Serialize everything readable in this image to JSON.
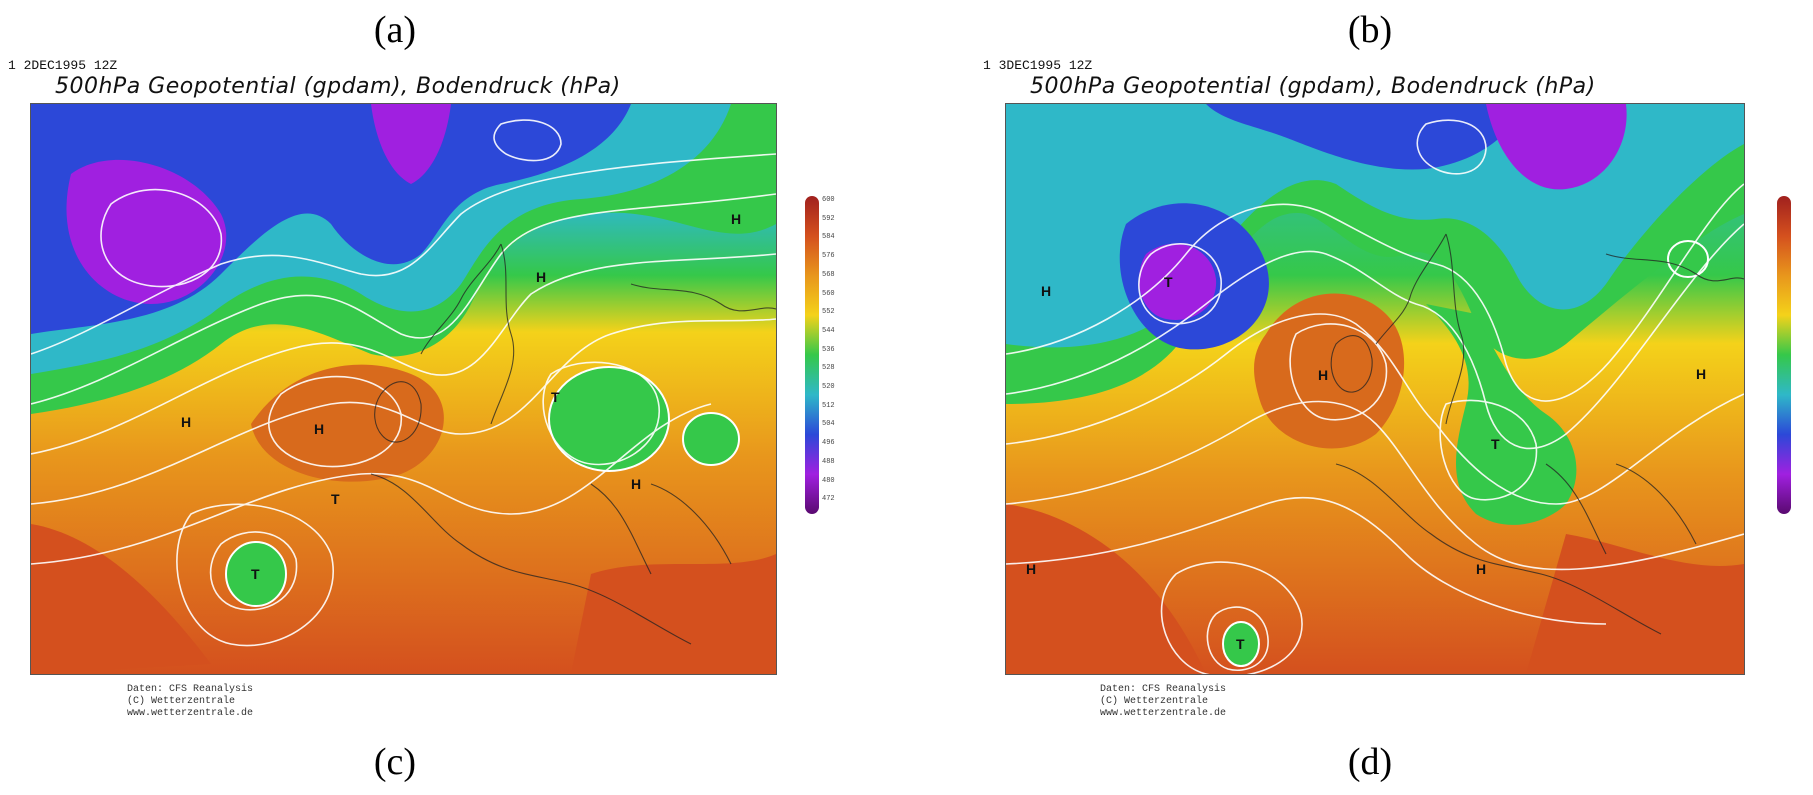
{
  "panels": [
    {
      "letter": "(a)",
      "bottom_letter": "(c)",
      "code": "1 2DEC1995 12Z",
      "title": "500hPa Geopotential (gpdam), Bodendruck (hPa)",
      "highs": [
        "H",
        "H",
        "H",
        "H",
        "H"
      ],
      "lows": [
        "T",
        "T",
        "T"
      ],
      "credit": [
        "Daten: CFS Reanalysis",
        "(C) Wetterzentrale",
        "www.wetterzentrale.de"
      ]
    },
    {
      "letter": "(b)",
      "bottom_letter": "(d)",
      "code": "1 3DEC1995 12Z",
      "title": "500hPa Geopotential (gpdam), Bodendruck (hPa)",
      "highs": [
        "H",
        "H",
        "H",
        "H",
        "H"
      ],
      "lows": [
        "T",
        "T",
        "T"
      ],
      "credit": [
        "Daten: CFS Reanalysis",
        "(C) Wetterzentrale",
        "www.wetterzentrale.de"
      ]
    }
  ],
  "legend": {
    "ticks": [
      "600",
      "592",
      "584",
      "576",
      "568",
      "560",
      "552",
      "544",
      "536",
      "528",
      "520",
      "512",
      "504",
      "496",
      "488",
      "480",
      "472"
    ]
  },
  "colors": {
    "deep_red": "#c8341e",
    "orange": "#e8841c",
    "yellow": "#f4d21a",
    "green": "#35c84a",
    "cyan": "#2fb8c8",
    "blue": "#2c48d8",
    "violet": "#a020e0"
  }
}
